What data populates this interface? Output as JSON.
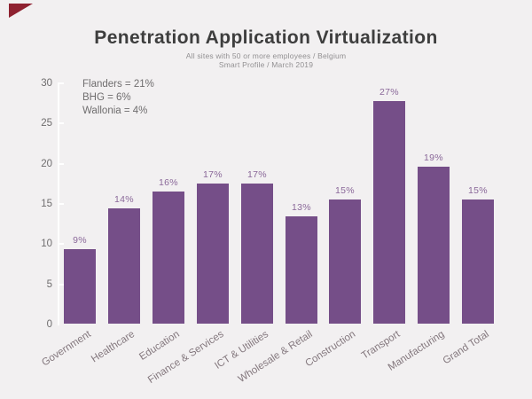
{
  "page": {
    "background": "#f2f0f1"
  },
  "corner_accent": {
    "shape": "triangle",
    "color": "#8e2130"
  },
  "header": {
    "title": "Penetration Application Virtualization",
    "subtitle_line1": "All sites with 50 or more employees / Belgium",
    "subtitle_line2": "Smart Profile / March 2019"
  },
  "annotation": {
    "lines": [
      "Flanders = 21%",
      "BHG = 6%",
      "Wallonia = 4%"
    ]
  },
  "chart_data": {
    "type": "bar",
    "title": "Penetration Application Virtualization",
    "subtitle": "All sites with 50 or more employees / Belgium — Smart Profile / March 2019",
    "categories": [
      "Government",
      "Healthcare",
      "Education",
      "Finance & Services",
      "ICT & Utilities",
      "Wholesale & Retail",
      "Construction",
      "Transport",
      "Manufacturing",
      "Grand Total"
    ],
    "values": [
      9,
      14,
      16,
      17,
      17,
      13,
      15,
      27,
      19,
      15
    ],
    "value_labels": [
      "9%",
      "14%",
      "16%",
      "17%",
      "17%",
      "13%",
      "15%",
      "27%",
      "19%",
      "15%"
    ],
    "xlabel": "",
    "ylabel": "",
    "y_ticks": [
      0,
      5,
      10,
      15,
      20,
      25,
      30
    ],
    "ylim": [
      0,
      30
    ],
    "grid": false,
    "legend_position": "top-left-annotation",
    "annotations": [
      "Flanders = 21%",
      "BHG = 6%",
      "Wallonia = 4%"
    ],
    "bar_color": "#754e88",
    "value_label_color": "#8a6899",
    "axis_line_color": "#ffffff",
    "tick_label_color": "#6f6d6e",
    "category_label_color": "#84787e",
    "background_color": "#f2f0f1"
  }
}
